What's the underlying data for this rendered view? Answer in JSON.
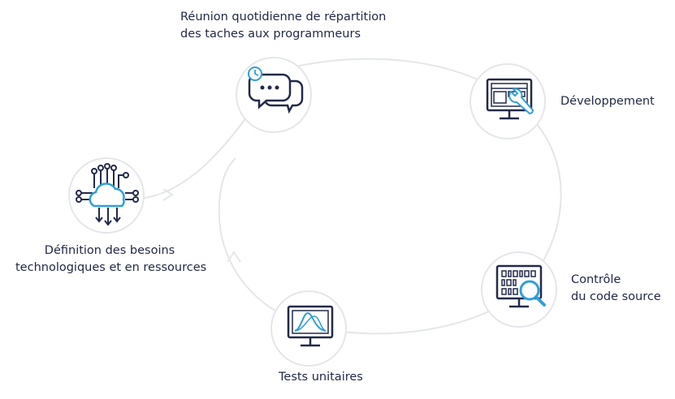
{
  "colors": {
    "navy": "#222a4a",
    "accent": "#2f9fd8",
    "ring": "#e4e6e9",
    "text": "#1f2746"
  },
  "nodes": [
    {
      "id": "daily-meeting",
      "label_lines": [
        "Réunion quotidienne de répartition",
        "des taches aux programmeurs"
      ],
      "icon": "chat-clock-icon"
    },
    {
      "id": "development",
      "label_lines": [
        "Développement"
      ],
      "icon": "monitor-wrench-icon"
    },
    {
      "id": "source-control",
      "label_lines": [
        "Contrôle",
        "du code source"
      ],
      "icon": "monitor-magnifier-icon"
    },
    {
      "id": "unit-tests",
      "label_lines": [
        "Tests unitaires"
      ],
      "icon": "monitor-graph-icon"
    },
    {
      "id": "needs-definition",
      "label_lines": [
        "Définition des besoins",
        "technologiques et en ressources"
      ],
      "icon": "cloud-circuit-icon"
    }
  ]
}
